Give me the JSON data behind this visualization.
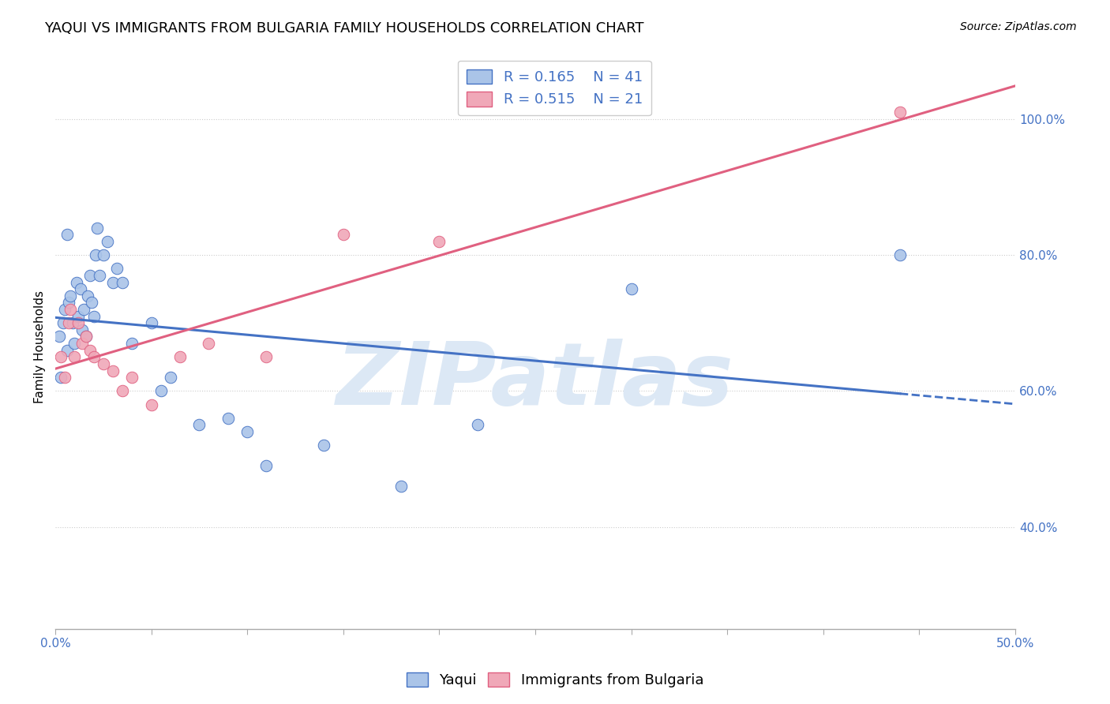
{
  "title": "YAQUI VS IMMIGRANTS FROM BULGARIA FAMILY HOUSEHOLDS CORRELATION CHART",
  "source": "Source: ZipAtlas.com",
  "ylabel": "Family Households",
  "xlim": [
    0.0,
    50.0
  ],
  "ylim": [
    25.0,
    108.0
  ],
  "yticks": [
    40.0,
    60.0,
    80.0,
    100.0
  ],
  "grid_color": "#cccccc",
  "background_color": "#ffffff",
  "yaqui_color": "#aac4e8",
  "bulgaria_color": "#f0a8b8",
  "yaqui_line_color": "#4472c4",
  "bulgaria_line_color": "#e06080",
  "legend_R_yaqui": "0.165",
  "legend_N_yaqui": "41",
  "legend_R_bulgaria": "0.515",
  "legend_N_bulgaria": "21",
  "yaqui_x": [
    0.2,
    0.3,
    0.4,
    0.5,
    0.6,
    0.6,
    0.7,
    0.8,
    0.9,
    1.0,
    1.1,
    1.2,
    1.3,
    1.4,
    1.5,
    1.6,
    1.7,
    1.8,
    1.9,
    2.0,
    2.1,
    2.2,
    2.3,
    2.5,
    2.7,
    3.0,
    3.2,
    3.5,
    4.0,
    5.0,
    5.5,
    6.0,
    7.5,
    9.0,
    10.0,
    11.0,
    14.0,
    18.0,
    22.0,
    30.0,
    44.0
  ],
  "yaqui_y": [
    68.0,
    62.0,
    70.0,
    72.0,
    66.0,
    83.0,
    73.0,
    74.0,
    70.0,
    67.0,
    76.0,
    71.0,
    75.0,
    69.0,
    72.0,
    68.0,
    74.0,
    77.0,
    73.0,
    71.0,
    80.0,
    84.0,
    77.0,
    80.0,
    82.0,
    76.0,
    78.0,
    76.0,
    67.0,
    70.0,
    60.0,
    62.0,
    55.0,
    56.0,
    54.0,
    49.0,
    52.0,
    46.0,
    55.0,
    75.0,
    80.0
  ],
  "bulgaria_x": [
    0.3,
    0.5,
    0.7,
    0.8,
    1.0,
    1.2,
    1.4,
    1.6,
    1.8,
    2.0,
    2.5,
    3.0,
    3.5,
    4.0,
    5.0,
    6.5,
    8.0,
    11.0,
    15.0,
    20.0,
    44.0
  ],
  "bulgaria_y": [
    65.0,
    62.0,
    70.0,
    72.0,
    65.0,
    70.0,
    67.0,
    68.0,
    66.0,
    65.0,
    64.0,
    63.0,
    60.0,
    62.0,
    58.0,
    65.0,
    67.0,
    65.0,
    83.0,
    82.0,
    101.0
  ],
  "yaqui_line_start_x": 0.0,
  "yaqui_line_end_x": 44.0,
  "yaqui_dash_end_x": 50.0,
  "bulgaria_line_start_x": 0.0,
  "bulgaria_line_end_x": 50.0,
  "watermark_text": "ZIPatlas",
  "watermark_color": "#dce8f5",
  "title_fontsize": 13,
  "axis_label_fontsize": 11,
  "tick_fontsize": 11,
  "legend_fontsize": 13,
  "source_fontsize": 10
}
